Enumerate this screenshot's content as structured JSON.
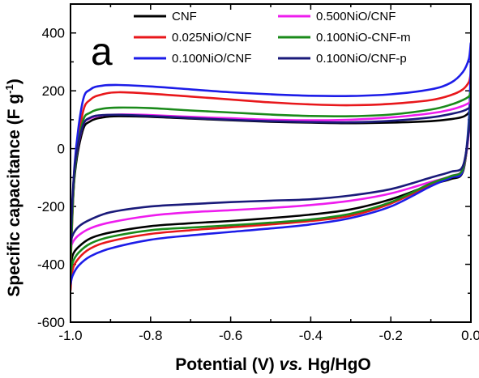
{
  "chart_data": {
    "type": "line",
    "panel_label": "a",
    "xlabel": "Potential (V) vs. Hg/HgO",
    "xlabel_parts": {
      "prefix": "Potential (V) ",
      "italic": "vs.",
      "suffix": " Hg/HgO"
    },
    "ylabel": "Specific capacitance (F g-1)",
    "ylabel_parts": {
      "base": "Specific capacitance (F g",
      "sup": "-1",
      "close": ")"
    },
    "xlim": [
      -1.0,
      0.0
    ],
    "ylim": [
      -600,
      500
    ],
    "xticks": [
      "-1.0",
      "-0.8",
      "-0.6",
      "-0.4",
      "-0.2",
      "0.0"
    ],
    "xtick_values": [
      -1.0,
      -0.8,
      -0.6,
      -0.4,
      -0.2,
      0.0
    ],
    "yticks": [
      "-600",
      "-400",
      "-200",
      "0",
      "200",
      "400"
    ],
    "ytick_values": [
      -600,
      -400,
      -200,
      0,
      200,
      400
    ],
    "legend_placement": "top",
    "series": [
      {
        "name": "CNF",
        "color": "#000000",
        "x": [
          -1.0,
          -0.99,
          -0.97,
          -0.95,
          -0.92,
          -0.88,
          -0.8,
          -0.7,
          -0.6,
          -0.5,
          -0.4,
          -0.3,
          -0.2,
          -0.1,
          -0.05,
          -0.02,
          -0.005,
          0.0,
          -0.005,
          -0.02,
          -0.05,
          -0.1,
          -0.2,
          -0.3,
          -0.4,
          -0.5,
          -0.6,
          -0.7,
          -0.8,
          -0.9,
          -0.95,
          -0.98,
          -0.995,
          -1.0
        ],
        "y": [
          -380,
          -100,
          60,
          95,
          108,
          112,
          110,
          104,
          98,
          93,
          90,
          88,
          90,
          95,
          102,
          110,
          125,
          145,
          60,
          -80,
          -105,
          -125,
          -175,
          -210,
          -228,
          -240,
          -250,
          -258,
          -268,
          -290,
          -310,
          -340,
          -370,
          -420
        ]
      },
      {
        "name": "0.025NiO/CNF",
        "color": "#e8171b",
        "x": [
          -1.0,
          -0.99,
          -0.97,
          -0.95,
          -0.92,
          -0.88,
          -0.8,
          -0.7,
          -0.6,
          -0.5,
          -0.4,
          -0.3,
          -0.2,
          -0.1,
          -0.05,
          -0.02,
          -0.005,
          0.0,
          -0.005,
          -0.02,
          -0.05,
          -0.1,
          -0.2,
          -0.3,
          -0.4,
          -0.5,
          -0.6,
          -0.7,
          -0.8,
          -0.9,
          -0.95,
          -0.98,
          -0.995,
          -1.0
        ],
        "y": [
          -420,
          -90,
          120,
          170,
          188,
          195,
          190,
          180,
          170,
          160,
          153,
          150,
          155,
          168,
          185,
          205,
          230,
          252,
          80,
          -75,
          -95,
          -125,
          -190,
          -232,
          -250,
          -262,
          -272,
          -282,
          -295,
          -320,
          -345,
          -380,
          -420,
          -490
        ]
      },
      {
        "name": "0.100NiO/CNF",
        "color": "#1c1ce8",
        "x": [
          -1.0,
          -0.99,
          -0.97,
          -0.95,
          -0.92,
          -0.88,
          -0.8,
          -0.7,
          -0.6,
          -0.5,
          -0.4,
          -0.3,
          -0.2,
          -0.1,
          -0.05,
          -0.02,
          -0.005,
          0.0,
          -0.005,
          -0.02,
          -0.05,
          -0.1,
          -0.2,
          -0.3,
          -0.4,
          -0.5,
          -0.6,
          -0.7,
          -0.8,
          -0.9,
          -0.95,
          -0.98,
          -0.995,
          -1.0
        ],
        "y": [
          -380,
          -60,
          160,
          205,
          218,
          220,
          215,
          205,
          195,
          188,
          183,
          182,
          188,
          205,
          228,
          265,
          310,
          355,
          100,
          -75,
          -100,
          -130,
          -200,
          -240,
          -262,
          -276,
          -288,
          -300,
          -315,
          -345,
          -372,
          -405,
          -440,
          -470
        ]
      },
      {
        "name": "0.500NiO/CNF",
        "color": "#ee1cee",
        "x": [
          -1.0,
          -0.99,
          -0.97,
          -0.95,
          -0.92,
          -0.88,
          -0.8,
          -0.7,
          -0.6,
          -0.5,
          -0.4,
          -0.3,
          -0.2,
          -0.1,
          -0.05,
          -0.02,
          -0.005,
          0.0,
          -0.005,
          -0.02,
          -0.05,
          -0.1,
          -0.2,
          -0.3,
          -0.4,
          -0.5,
          -0.6,
          -0.7,
          -0.8,
          -0.9,
          -0.95,
          -0.98,
          -0.995,
          -1.0
        ],
        "y": [
          -340,
          -80,
          75,
          105,
          115,
          118,
          116,
          110,
          105,
          100,
          98,
          100,
          108,
          122,
          135,
          148,
          158,
          165,
          55,
          -70,
          -95,
          -115,
          -155,
          -180,
          -195,
          -205,
          -213,
          -220,
          -232,
          -255,
          -275,
          -300,
          -325,
          -350
        ]
      },
      {
        "name": "0.100NiO-CNF-m",
        "color": "#1a8a1a",
        "x": [
          -1.0,
          -0.99,
          -0.97,
          -0.95,
          -0.92,
          -0.88,
          -0.8,
          -0.7,
          -0.6,
          -0.5,
          -0.4,
          -0.3,
          -0.2,
          -0.1,
          -0.05,
          -0.02,
          -0.005,
          0.0,
          -0.005,
          -0.02,
          -0.05,
          -0.1,
          -0.2,
          -0.3,
          -0.4,
          -0.5,
          -0.6,
          -0.7,
          -0.8,
          -0.9,
          -0.95,
          -0.98,
          -0.995,
          -1.0
        ],
        "y": [
          -400,
          -90,
          90,
          125,
          138,
          142,
          140,
          132,
          125,
          118,
          113,
          112,
          118,
          135,
          152,
          168,
          180,
          190,
          70,
          -70,
          -95,
          -120,
          -185,
          -225,
          -245,
          -256,
          -265,
          -273,
          -282,
          -305,
          -328,
          -360,
          -395,
          -440
        ]
      },
      {
        "name": "0.100NiO/CNF-p",
        "color": "#1a1a7a",
        "x": [
          -1.0,
          -0.99,
          -0.97,
          -0.95,
          -0.92,
          -0.88,
          -0.8,
          -0.7,
          -0.6,
          -0.5,
          -0.4,
          -0.3,
          -0.2,
          -0.1,
          -0.05,
          -0.02,
          -0.005,
          0.0,
          -0.005,
          -0.02,
          -0.05,
          -0.1,
          -0.2,
          -0.3,
          -0.4,
          -0.5,
          -0.6,
          -0.7,
          -0.8,
          -0.9,
          -0.95,
          -0.98,
          -0.995,
          -1.0
        ],
        "y": [
          -320,
          -70,
          75,
          108,
          116,
          117,
          113,
          106,
          100,
          95,
          92,
          91,
          96,
          108,
          120,
          130,
          140,
          148,
          60,
          -60,
          -80,
          -100,
          -140,
          -162,
          -175,
          -180,
          -185,
          -192,
          -200,
          -220,
          -245,
          -270,
          -300,
          -330
        ]
      }
    ]
  }
}
